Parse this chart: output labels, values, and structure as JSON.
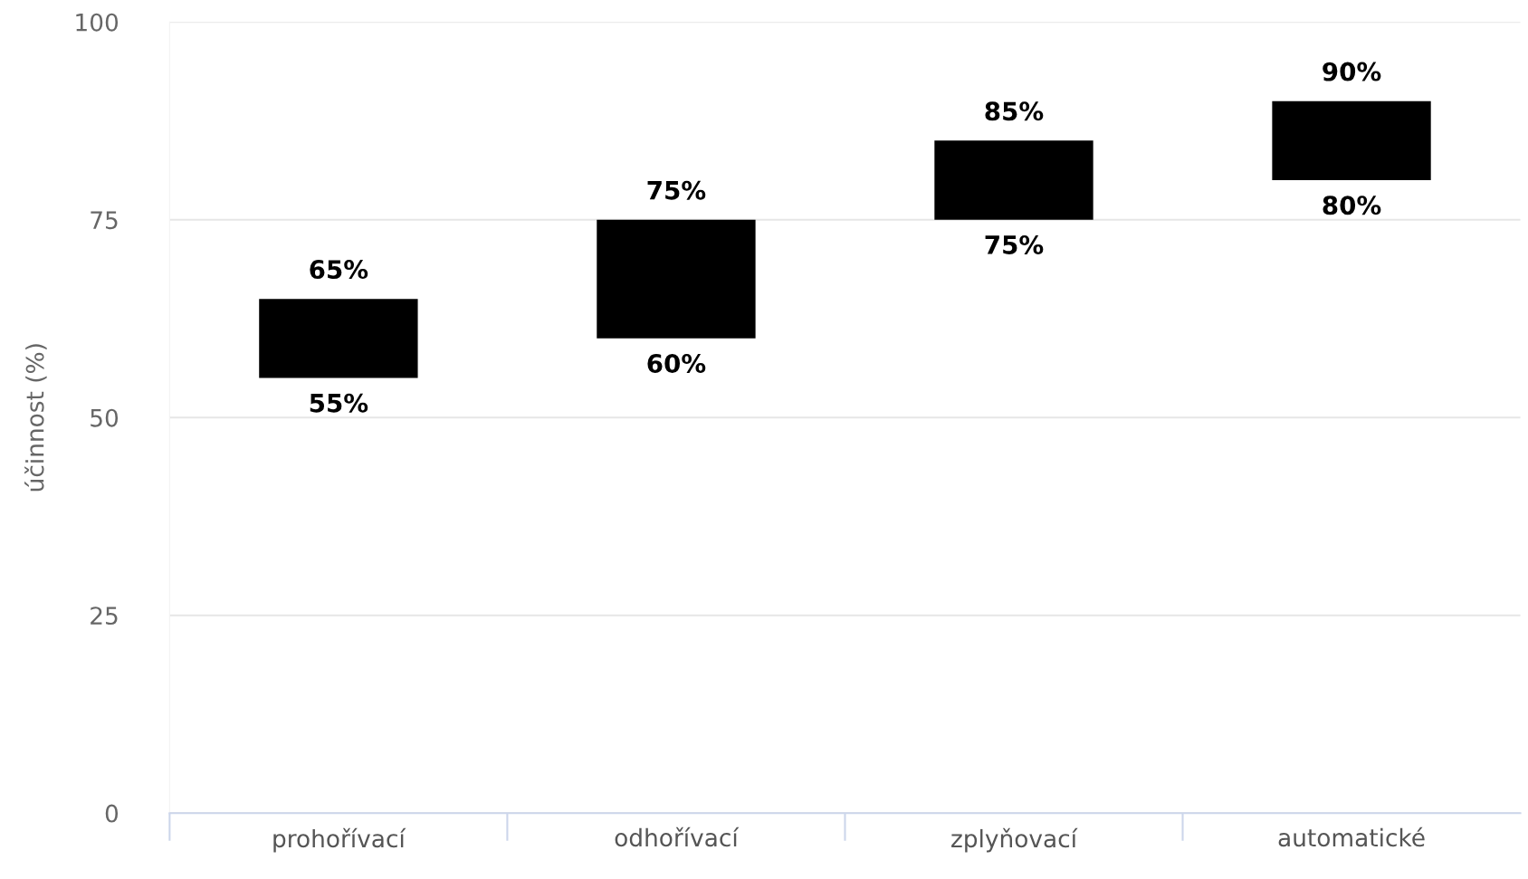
{
  "chart_data": {
    "type": "bar",
    "ylabel": "účinnost (%)",
    "categories": [
      "prohořívací",
      "odhořívací",
      "zplyňovací",
      "automatické"
    ],
    "base": [
      55,
      60,
      75,
      80
    ],
    "values": [
      10,
      15,
      10,
      10
    ],
    "color": "#000000",
    "ylim": [
      0,
      100
    ],
    "yticks": [
      0,
      25,
      50,
      75,
      100
    ],
    "grid": "y",
    "annotations": [
      {
        "text": "65%",
        "x": "prohořívací",
        "y": 65
      },
      {
        "text": "55%",
        "x": "prohořívací",
        "y": 55
      },
      {
        "text": "75%",
        "x": "odhořívací",
        "y": 75
      },
      {
        "text": "60%",
        "x": "odhořívací",
        "y": 60
      },
      {
        "text": "85%",
        "x": "zplyňovací",
        "y": 85
      },
      {
        "text": "75%",
        "x": "zplyňovací",
        "y": 75
      },
      {
        "text": "90%",
        "x": "automatické",
        "y": 90
      },
      {
        "text": "80%",
        "x": "automatické",
        "y": 80
      }
    ]
  }
}
